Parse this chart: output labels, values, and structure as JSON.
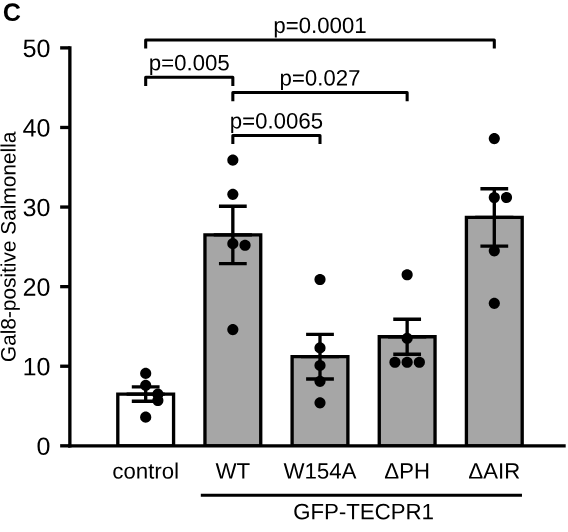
{
  "chart_data": {
    "type": "bar",
    "ylabel": "Gal8-positive Salmonella",
    "categories": [
      "control",
      "WT",
      "W154A",
      "ΔPH",
      "ΔAIR"
    ],
    "series": [
      {
        "colors": [
          "#ffffff",
          "#a6a6a6",
          "#a6a6a6",
          "#a6a6a6",
          "#a6a6a6"
        ],
        "values": [
          6.5,
          26.5,
          11.2,
          13.7,
          28.7
        ],
        "errors": [
          0.9,
          3.6,
          2.8,
          2.2,
          3.6
        ]
      },
      {
        "type": "scatter",
        "color": "#000000",
        "x": [
          "control",
          "control",
          "control",
          "control",
          "control",
          "WT",
          "WT",
          "WT",
          "WT",
          "WT",
          "W154A",
          "W154A",
          "W154A",
          "W154A",
          "W154A",
          "ΔPH",
          "ΔPH",
          "ΔPH",
          "ΔPH",
          "ΔPH",
          "ΔAIR",
          "ΔAIR",
          "ΔAIR",
          "ΔAIR",
          "ΔAIR"
        ],
        "values": [
          9.1,
          7.6,
          6.5,
          5.7,
          3.6,
          35.9,
          31.6,
          25.4,
          25.2,
          14.6,
          20.9,
          12.3,
          10.1,
          8.1,
          5.4,
          21.5,
          13.5,
          10.5,
          10.5,
          10.5,
          38.6,
          31.2,
          31.2,
          24.5,
          17.9
        ]
      }
    ],
    "ylim": [
      0,
      50
    ],
    "yticks": [
      0,
      10,
      20,
      30,
      40,
      50
    ],
    "marker": "circle",
    "grid": false,
    "annotations": [
      "C",
      "p=0.0001",
      "p=0.005",
      "p=0.027",
      "p=0.0065",
      "GFP-TECPR1"
    ]
  }
}
